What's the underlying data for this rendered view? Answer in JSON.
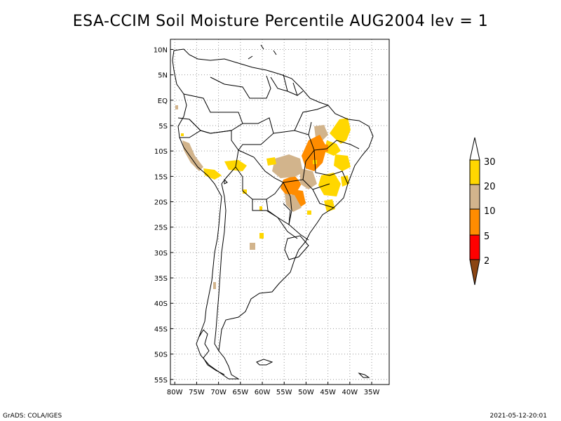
{
  "title": "ESA-CCIM Soil Moisture Percentile AUG2004 lev = 1",
  "footer": {
    "left": "GrADS: COLA/IGES",
    "right": "2021-05-12-20:01"
  },
  "map": {
    "lon_range": [
      -81,
      -31
    ],
    "lat_range": [
      -56,
      12
    ],
    "lat_ticks": [
      "10N",
      "5N",
      "EQ",
      "5S",
      "10S",
      "15S",
      "20S",
      "25S",
      "30S",
      "35S",
      "40S",
      "45S",
      "50S",
      "55S"
    ],
    "lat_tick_values": [
      10,
      5,
      0,
      -5,
      -10,
      -15,
      -20,
      -25,
      -30,
      -35,
      -40,
      -45,
      -50,
      -55
    ],
    "lon_ticks": [
      "80W",
      "75W",
      "70W",
      "65W",
      "60W",
      "55W",
      "50W",
      "45W",
      "40W",
      "35W"
    ],
    "lon_tick_values": [
      -80,
      -75,
      -70,
      -65,
      -60,
      -55,
      -50,
      -45,
      -40,
      -35
    ],
    "grid": true
  },
  "colorbar": {
    "labels": [
      "2",
      "5",
      "10",
      "20",
      "30"
    ],
    "colors": [
      "#8b4513",
      "#ff0000",
      "#ff8c00",
      "#d2b48c",
      "#ffd700",
      "#ffffff"
    ]
  },
  "colors": {
    "orange": "#ff8c00",
    "tan": "#d2b48c",
    "gold": "#ffd700",
    "red": "#ff0000",
    "brown": "#8b4513"
  }
}
